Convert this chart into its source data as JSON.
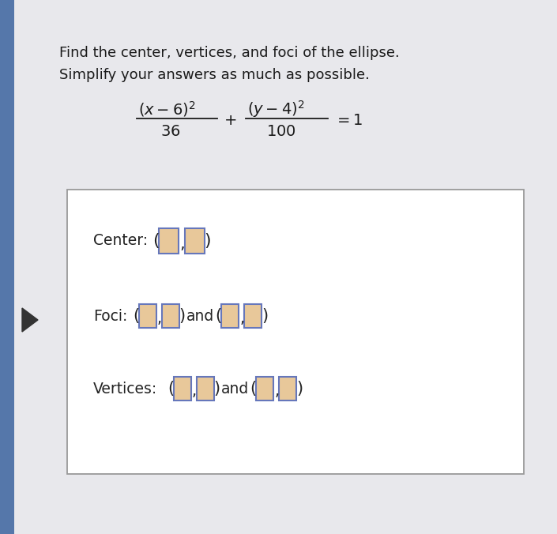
{
  "background_color": "#c8c8cc",
  "page_color": "#e8e8ec",
  "box_color": "#f0f0f2",
  "box_border_color": "#999999",
  "title_line1": "Find the center, vertices, and foci of the ellipse.",
  "title_line2": "Simplify your answers as much as possible.",
  "title_fontsize": 13.0,
  "title_color": "#1a1a1a",
  "equation_color": "#1a1a1a",
  "label_fontsize": 13.5,
  "label_color": "#222222",
  "input_box_fill": "#e8c89a",
  "input_box_border": "#6677bb",
  "center_label": "Center:",
  "foci_label": "Foci:",
  "vertices_label": "Vertices:",
  "and_text": "and",
  "fig_width": 7.05,
  "fig_height": 6.76,
  "dpi": 100
}
